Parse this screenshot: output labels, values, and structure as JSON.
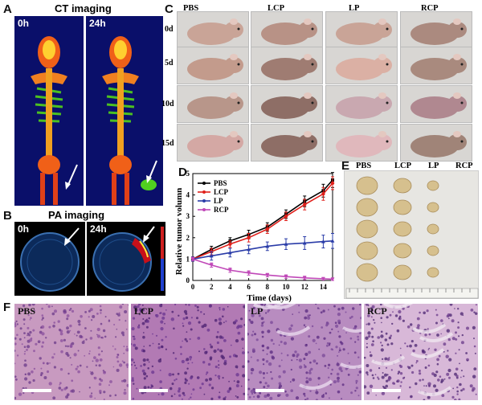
{
  "panels": {
    "a": "A",
    "b": "B",
    "c": "C",
    "d": "D",
    "e": "E",
    "f": "F"
  },
  "ct": {
    "title": "CT imaging",
    "t0": "0h",
    "t24": "24h"
  },
  "pa": {
    "title": "PA imaging",
    "t0": "0h",
    "t24": "24h"
  },
  "mice": {
    "groups": [
      "PBS",
      "LCP",
      "LP",
      "RCP"
    ],
    "days": [
      "0d",
      "5d",
      "10d",
      "15d"
    ]
  },
  "tumors": {
    "groups": [
      "PBS",
      "LCP",
      "LP",
      "RCP"
    ]
  },
  "he": {
    "labels": [
      "PBS",
      "LCP",
      "LP",
      "RCP"
    ]
  },
  "chart_data": {
    "type": "line",
    "xlabel": "Time (days)",
    "ylabel": "Relative tumor volumn",
    "xlim": [
      0,
      15
    ],
    "ylim": [
      0,
      5
    ],
    "xticks": [
      0,
      2,
      4,
      6,
      8,
      10,
      12,
      14
    ],
    "yticks": [
      0,
      1,
      2,
      3,
      4,
      5
    ],
    "legend_position": "top-left",
    "x": [
      0,
      2,
      4,
      6,
      8,
      10,
      12,
      14,
      15
    ],
    "series": [
      {
        "name": "PBS",
        "color": "#000000",
        "values": [
          1.0,
          1.45,
          1.85,
          2.15,
          2.5,
          3.1,
          3.7,
          4.2,
          4.7
        ],
        "errors": [
          0.1,
          0.15,
          0.15,
          0.2,
          0.2,
          0.2,
          0.25,
          0.3,
          0.35
        ]
      },
      {
        "name": "LCP",
        "color": "#e0201b",
        "values": [
          1.0,
          1.35,
          1.7,
          2.0,
          2.4,
          3.0,
          3.55,
          4.05,
          4.55
        ],
        "errors": [
          0.1,
          0.15,
          0.15,
          0.2,
          0.2,
          0.2,
          0.25,
          0.3,
          0.3
        ]
      },
      {
        "name": "LP",
        "color": "#2a3ca8",
        "values": [
          1.0,
          1.15,
          1.3,
          1.45,
          1.6,
          1.7,
          1.75,
          1.82,
          1.85
        ],
        "errors": [
          0.1,
          0.2,
          0.2,
          0.2,
          0.2,
          0.25,
          0.3,
          0.3,
          0.35
        ]
      },
      {
        "name": "RCP",
        "color": "#c048b8",
        "values": [
          1.0,
          0.72,
          0.48,
          0.35,
          0.25,
          0.18,
          0.12,
          0.08,
          0.06
        ],
        "errors": [
          0.08,
          0.1,
          0.1,
          0.1,
          0.08,
          0.08,
          0.08,
          0.06,
          0.06
        ]
      }
    ]
  }
}
